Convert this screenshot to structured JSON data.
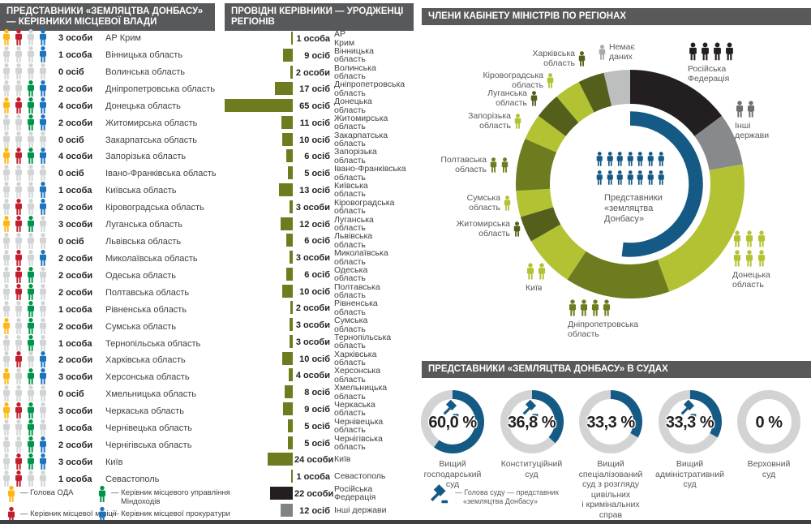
{
  "chart_data": [
    {
      "type": "table",
      "title": "ПРЕДСТАВНИКИ «ЗЕМЛЯЦТВА ДОНБАСУ» — КЕРІВНИКИ МІСЦЕВОЇ ВЛАДИ",
      "roles_legend": [
        {
          "id": "oda",
          "color": "#fdb714",
          "label_lines": [
            "— Голова ОДА"
          ]
        },
        {
          "id": "mindohodiv",
          "color": "#00944a",
          "label_lines": [
            "— Керівник місцевого управління",
            "Міндоходів"
          ]
        },
        {
          "id": "militia",
          "color": "#bf202e",
          "label_lines": [
            "— Керівник місцевої міліції"
          ]
        },
        {
          "id": "prokuratura",
          "color": "#1c75bc",
          "label_lines": [
            "— Керівник місцевої прокуратури"
          ]
        }
      ],
      "empty_color": "#d1d3d4",
      "rows": [
        {
          "region": "АР Крим",
          "count_label": "3 особи",
          "slots": [
            "oda",
            "militia",
            "empty",
            "prokuratura"
          ]
        },
        {
          "region": "Вінницька область",
          "count_label": "1 особа",
          "slots": [
            "empty",
            "empty",
            "empty",
            "prokuratura"
          ]
        },
        {
          "region": "Волинська область",
          "count_label": "0 осіб",
          "slots": [
            "empty",
            "empty",
            "empty",
            "empty"
          ]
        },
        {
          "region": "Дніпропетровська область",
          "count_label": "2 особи",
          "slots": [
            "empty",
            "empty",
            "mindohodiv",
            "prokuratura"
          ]
        },
        {
          "region": "Донецька область",
          "count_label": "4 особи",
          "slots": [
            "oda",
            "militia",
            "mindohodiv",
            "prokuratura"
          ]
        },
        {
          "region": "Житомирська область",
          "count_label": "2 особи",
          "slots": [
            "empty",
            "empty",
            "mindohodiv",
            "prokuratura"
          ]
        },
        {
          "region": "Закарпатська область",
          "count_label": "0 осіб",
          "slots": [
            "empty",
            "empty",
            "empty",
            "empty"
          ]
        },
        {
          "region": "Запорізька область",
          "count_label": "4 особи",
          "slots": [
            "oda",
            "militia",
            "mindohodiv",
            "prokuratura"
          ]
        },
        {
          "region": "Івано-Франківська область",
          "count_label": "0 осіб",
          "slots": [
            "empty",
            "empty",
            "empty",
            "empty"
          ]
        },
        {
          "region": "Київська область",
          "count_label": "1 особа",
          "slots": [
            "empty",
            "empty",
            "empty",
            "prokuratura"
          ]
        },
        {
          "region": "Кіровоградська область",
          "count_label": "2 особи",
          "slots": [
            "empty",
            "militia",
            "empty",
            "prokuratura"
          ]
        },
        {
          "region": "Луганська область",
          "count_label": "3 особи",
          "slots": [
            "oda",
            "militia",
            "mindohodiv",
            "empty"
          ]
        },
        {
          "region": "Львівська область",
          "count_label": "0 осіб",
          "slots": [
            "empty",
            "empty",
            "empty",
            "empty"
          ]
        },
        {
          "region": "Миколаївська область",
          "count_label": "2 особи",
          "slots": [
            "empty",
            "militia",
            "empty",
            "prokuratura"
          ]
        },
        {
          "region": "Одеська область",
          "count_label": "2 особи",
          "slots": [
            "empty",
            "militia",
            "mindohodiv",
            "empty"
          ]
        },
        {
          "region": "Полтавська область",
          "count_label": "2 особи",
          "slots": [
            "empty",
            "militia",
            "mindohodiv",
            "empty"
          ]
        },
        {
          "region": "Рівненська область",
          "count_label": "1 особа",
          "slots": [
            "empty",
            "empty",
            "mindohodiv",
            "empty"
          ]
        },
        {
          "region": "Сумська область",
          "count_label": "2 особи",
          "slots": [
            "oda",
            "empty",
            "mindohodiv",
            "empty"
          ]
        },
        {
          "region": "Тернопільська область",
          "count_label": "1 особа",
          "slots": [
            "empty",
            "empty",
            "mindohodiv",
            "empty"
          ]
        },
        {
          "region": "Харківська область",
          "count_label": "2 особи",
          "slots": [
            "empty",
            "militia",
            "empty",
            "prokuratura"
          ]
        },
        {
          "region": "Херсонська область",
          "count_label": "3 особи",
          "slots": [
            "oda",
            "empty",
            "mindohodiv",
            "prokuratura"
          ]
        },
        {
          "region": "Хмельницька область",
          "count_label": "0 осіб",
          "slots": [
            "empty",
            "empty",
            "empty",
            "empty"
          ]
        },
        {
          "region": "Черкаська область",
          "count_label": "3 особи",
          "slots": [
            "oda",
            "militia",
            "mindohodiv",
            "empty"
          ]
        },
        {
          "region": "Чернівецька область",
          "count_label": "1 особа",
          "slots": [
            "empty",
            "empty",
            "mindohodiv",
            "empty"
          ]
        },
        {
          "region": "Чернігівська область",
          "count_label": "2 особи",
          "slots": [
            "empty",
            "empty",
            "mindohodiv",
            "prokuratura"
          ]
        },
        {
          "region": "Київ",
          "count_label": "3 особи",
          "slots": [
            "empty",
            "militia",
            "mindohodiv",
            "prokuratura"
          ]
        },
        {
          "region": "Севастополь",
          "count_label": "1 особа",
          "slots": [
            "empty",
            "militia",
            "empty",
            "empty"
          ]
        }
      ]
    },
    {
      "type": "bar",
      "title": "ПРОВІДНІ КЕРІВНИКИ — УРОДЖЕНЦІ РЕГІОНІВ",
      "xlim": [
        0,
        65
      ],
      "colors": {
        "olive": "#6e7c1f",
        "black": "#231f20",
        "gray": "#808285"
      },
      "bars": [
        {
          "region_lines": [
            "АР",
            "Крим"
          ],
          "value": 1,
          "count_label": "1 особа",
          "color": "olive"
        },
        {
          "region_lines": [
            "Вінницька",
            "область"
          ],
          "value": 9,
          "count_label": "9 осіб",
          "color": "olive"
        },
        {
          "region_lines": [
            "Волинська",
            "область"
          ],
          "value": 2,
          "count_label": "2 особи",
          "color": "olive"
        },
        {
          "region_lines": [
            "Дніпропетровська",
            "область"
          ],
          "value": 17,
          "count_label": "17 осіб",
          "color": "olive"
        },
        {
          "region_lines": [
            "Донецька",
            "область"
          ],
          "value": 65,
          "count_label": "65 осіб",
          "color": "olive"
        },
        {
          "region_lines": [
            "Житомирська",
            "область"
          ],
          "value": 11,
          "count_label": "11 осіб",
          "color": "olive"
        },
        {
          "region_lines": [
            "Закарпатська",
            "область"
          ],
          "value": 10,
          "count_label": "10 осіб",
          "color": "olive"
        },
        {
          "region_lines": [
            "Запорізька",
            "область"
          ],
          "value": 6,
          "count_label": "6 осіб",
          "color": "olive"
        },
        {
          "region_lines": [
            "Івано-Франківська",
            "область"
          ],
          "value": 5,
          "count_label": "5 осіб",
          "color": "olive"
        },
        {
          "region_lines": [
            "Київська",
            "область"
          ],
          "value": 13,
          "count_label": "13 осіб",
          "color": "olive"
        },
        {
          "region_lines": [
            "Кіровоградська",
            "область"
          ],
          "value": 3,
          "count_label": "3 особи",
          "color": "olive"
        },
        {
          "region_lines": [
            "Луганська",
            "область"
          ],
          "value": 12,
          "count_label": "12 осіб",
          "color": "olive"
        },
        {
          "region_lines": [
            "Львівська",
            "область"
          ],
          "value": 6,
          "count_label": "6 осіб",
          "color": "olive"
        },
        {
          "region_lines": [
            "Миколаївська",
            "область"
          ],
          "value": 3,
          "count_label": "3 особи",
          "color": "olive"
        },
        {
          "region_lines": [
            "Одеська",
            "область"
          ],
          "value": 6,
          "count_label": "6 осіб",
          "color": "olive"
        },
        {
          "region_lines": [
            "Полтавська",
            "область"
          ],
          "value": 10,
          "count_label": "10 осіб",
          "color": "olive"
        },
        {
          "region_lines": [
            "Рівненська",
            "область"
          ],
          "value": 2,
          "count_label": "2 особи",
          "color": "olive"
        },
        {
          "region_lines": [
            "Сумська",
            "область"
          ],
          "value": 3,
          "count_label": "3 особи",
          "color": "olive"
        },
        {
          "region_lines": [
            "Тернопільська",
            "область"
          ],
          "value": 3,
          "count_label": "3 особи",
          "color": "olive"
        },
        {
          "region_lines": [
            "Харківська",
            "область"
          ],
          "value": 10,
          "count_label": "10 осіб",
          "color": "olive"
        },
        {
          "region_lines": [
            "Херсонська",
            "область"
          ],
          "value": 4,
          "count_label": "4 особи",
          "color": "olive"
        },
        {
          "region_lines": [
            "Хмельницька",
            "область"
          ],
          "value": 8,
          "count_label": "8 осіб",
          "color": "olive"
        },
        {
          "region_lines": [
            "Черкаська",
            "область"
          ],
          "value": 9,
          "count_label": "9 осіб",
          "color": "olive"
        },
        {
          "region_lines": [
            "Чернівецька",
            "область"
          ],
          "value": 5,
          "count_label": "5 осіб",
          "color": "olive"
        },
        {
          "region_lines": [
            "Чернігівська",
            "область"
          ],
          "value": 5,
          "count_label": "5 осіб",
          "color": "olive"
        },
        {
          "region_lines": [
            "Київ"
          ],
          "value": 24,
          "count_label": "24 особи",
          "color": "olive"
        },
        {
          "region_lines": [
            "Севастополь"
          ],
          "value": 1,
          "count_label": "1 особа",
          "color": "olive"
        },
        {
          "region_lines": [
            "Російська",
            "Федерація"
          ],
          "value": 22,
          "count_label": "22 особи",
          "color": "black"
        },
        {
          "region_lines": [
            "Інші держави"
          ],
          "value": 12,
          "count_label": "12 осіб",
          "color": "gray"
        }
      ]
    },
    {
      "type": "pie",
      "title": "ЧЛЕНИ КАБІНЕТУ МІНІСТРІВ ПО РЕГІОНАХ",
      "total_persons": 27,
      "tones": {
        "black": "#231f20",
        "darkgray": "#87898c",
        "light": "#b3c232",
        "medium": "#6e7c1f",
        "dark": "#535f1b",
        "nodata": "#bcbec0"
      },
      "icon_tones": {
        "black": "#231f20",
        "darkgray": "#6d6e71",
        "light": "#b3c232",
        "medium": "#6e7c1f",
        "dark": "#535f1b",
        "nodata": "#a7a9ac"
      },
      "segments": [
        {
          "id": "rf",
          "label_lines": [
            "Російська",
            "Федерація"
          ],
          "persons": 4,
          "tone": "black"
        },
        {
          "id": "other",
          "label_lines": [
            "Інші",
            "держави"
          ],
          "persons": 2,
          "tone": "darkgray"
        },
        {
          "id": "donetsk",
          "label_lines": [
            "Донецька",
            "область"
          ],
          "persons": 6,
          "tone": "light"
        },
        {
          "id": "dnipro",
          "label_lines": [
            "Дніпропетровська",
            "область"
          ],
          "persons": 4,
          "tone": "medium"
        },
        {
          "id": "kyiv",
          "label_lines": [
            "Київ"
          ],
          "persons": 2,
          "tone": "light"
        },
        {
          "id": "zhytomyr",
          "label_lines": [
            "Житомирська",
            "область"
          ],
          "persons": 1,
          "tone": "dark"
        },
        {
          "id": "sumy",
          "label_lines": [
            "Сумська",
            "область"
          ],
          "persons": 1,
          "tone": "light"
        },
        {
          "id": "poltava",
          "label_lines": [
            "Полтавська",
            "область"
          ],
          "persons": 2,
          "tone": "medium"
        },
        {
          "id": "zaporizhzhia",
          "label_lines": [
            "Запорізька",
            "область"
          ],
          "persons": 1,
          "tone": "light"
        },
        {
          "id": "luhansk",
          "label_lines": [
            "Луганська",
            "область"
          ],
          "persons": 1,
          "tone": "dark"
        },
        {
          "id": "kirovohrad",
          "label_lines": [
            "Кіровоградська",
            "область"
          ],
          "persons": 1,
          "tone": "light"
        },
        {
          "id": "kharkiv",
          "label_lines": [
            "Харківська",
            "область"
          ],
          "persons": 1,
          "tone": "dark"
        },
        {
          "id": "nodata",
          "label_lines": [
            "Немає",
            "даних"
          ],
          "persons": 1,
          "tone": "nodata"
        }
      ],
      "center": {
        "persons": 14,
        "color": "#155a85",
        "label_lines": [
          "Представники",
          "«земляцтва",
          "Донбасу»"
        ]
      }
    },
    {
      "type": "gauges",
      "title": "ПРЕДСТАВНИКИ «ЗЕМЛЯЦТВА ДОНБАСУ» В СУДАХ",
      "arc_color": "#155a85",
      "track_color": "#d1d3d4",
      "items": [
        {
          "value_label": "60,0 %",
          "pct": 60.0,
          "gavel": true,
          "label_lines": [
            "Вищий",
            "господарський",
            "суд"
          ]
        },
        {
          "value_label": "36,8 %",
          "pct": 36.8,
          "gavel": true,
          "label_lines": [
            "Конституційний",
            "суд"
          ]
        },
        {
          "value_label": "33,3 %",
          "pct": 33.3,
          "gavel": false,
          "label_lines": [
            "Вищий",
            "спеціалізований",
            "суд з розгляду",
            "цивільних",
            "і кримінальних",
            "справ"
          ]
        },
        {
          "value_label": "33,3 %",
          "pct": 33.3,
          "gavel": true,
          "label_lines": [
            "Вищий",
            "адміністративний",
            "суд"
          ]
        },
        {
          "value_label": "0 %",
          "pct": 0,
          "gavel": false,
          "label_lines": [
            "Верховний",
            "суд"
          ]
        }
      ],
      "legend_lines": [
        "— Голова суду — представник",
        "«земляцтва Донбасу»"
      ]
    }
  ]
}
